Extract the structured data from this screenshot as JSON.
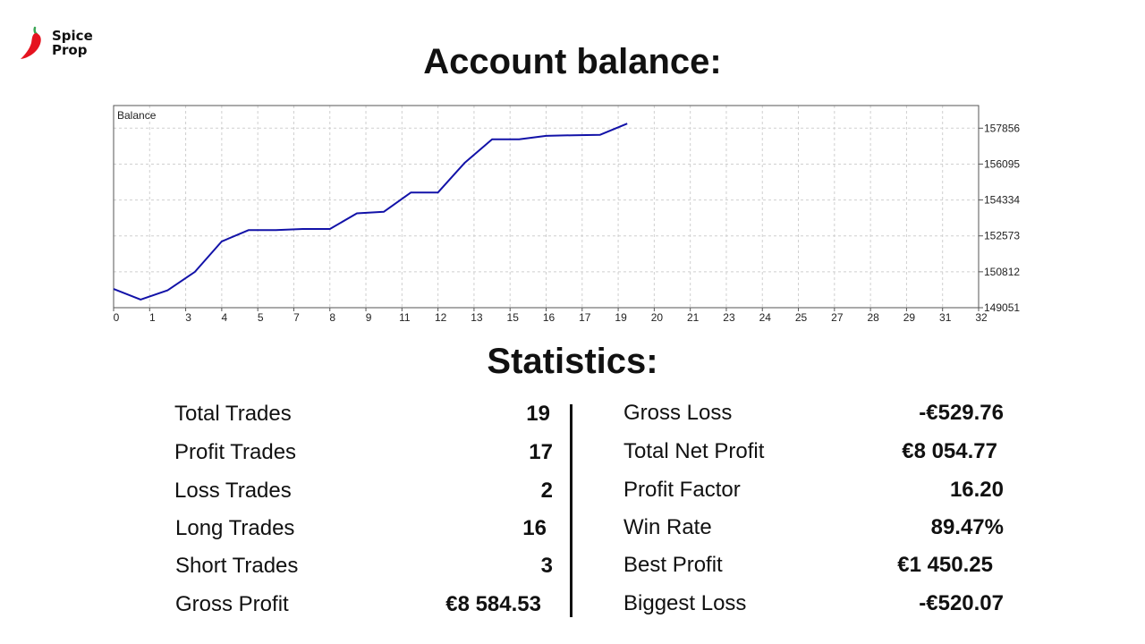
{
  "brand": {
    "line1": "Spice",
    "line2": "Prop",
    "accent": "#e5131f",
    "stem": "#3aa655"
  },
  "title": "Account balance:",
  "stats_heading": "Statistics:",
  "chart_data": {
    "type": "line",
    "title": "Balance",
    "x_ticks": [
      "0",
      "1",
      "3",
      "4",
      "5",
      "7",
      "8",
      "9",
      "11",
      "12",
      "13",
      "15",
      "16",
      "17",
      "19",
      "20",
      "21",
      "23",
      "24",
      "25",
      "27",
      "28",
      "29",
      "31",
      "32"
    ],
    "x": [
      0,
      1,
      2,
      3,
      4,
      5,
      6,
      7,
      8,
      9,
      10,
      11,
      12,
      13,
      14,
      15,
      16,
      17,
      18,
      19
    ],
    "y": [
      149970,
      149450,
      149900,
      150800,
      152300,
      152860,
      152860,
      152910,
      152910,
      153680,
      153760,
      154700,
      154700,
      156170,
      157310,
      157310,
      157480,
      157510,
      157530,
      158080
    ],
    "y_ticks": [
      149051,
      150812,
      152573,
      154334,
      156095,
      157856
    ],
    "ylim": [
      149051,
      158966
    ],
    "xlim": [
      0,
      32
    ],
    "grid": true,
    "line_color": "#1212a8",
    "grid_color": "#cfcfcf",
    "border_color": "#555555"
  },
  "stats_left": [
    {
      "label": "Total Trades",
      "value": "19"
    },
    {
      "label": "Profit Trades",
      "value": "17"
    },
    {
      "label": "Loss Trades",
      "value": "2"
    },
    {
      "label": "Long Trades",
      "value": "16"
    },
    {
      "label": "Short Trades",
      "value": "3"
    },
    {
      "label": "Gross Profit",
      "value": "€8 584.53"
    }
  ],
  "stats_right": [
    {
      "label": "Gross Loss",
      "value": "-€529.76"
    },
    {
      "label": "Total Net Profit",
      "value": "€8 054.77"
    },
    {
      "label": "Profit Factor",
      "value": "16.20"
    },
    {
      "label": "Win Rate",
      "value": "89.47%"
    },
    {
      "label": "Best Profit",
      "value": "€1 450.25"
    },
    {
      "label": "Biggest Loss",
      "value": "-€520.07"
    }
  ]
}
